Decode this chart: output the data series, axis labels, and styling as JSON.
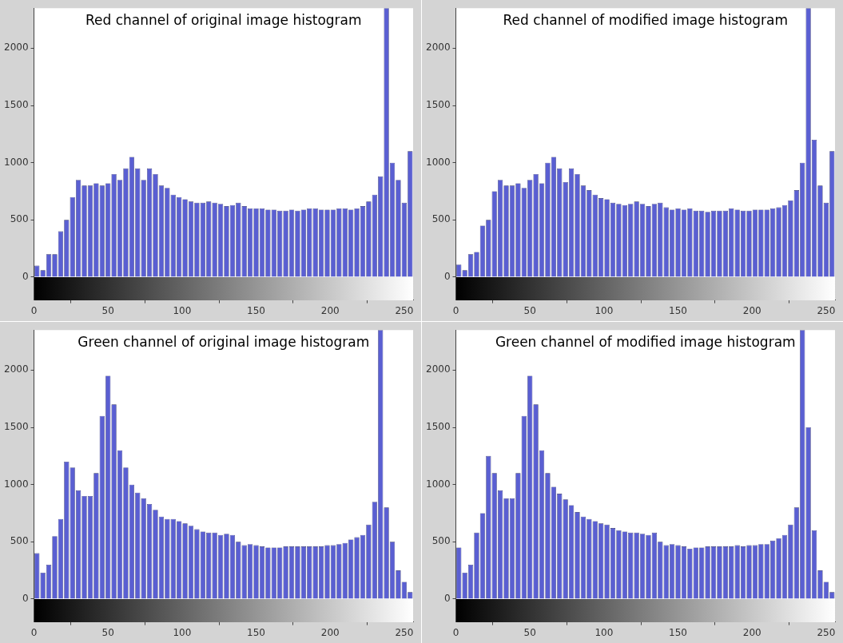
{
  "chart_data": [
    {
      "type": "histogram",
      "title": "Red channel of original image histogram",
      "color": "#5a5fd2",
      "xlim": [
        0,
        256
      ],
      "xticks": [
        0,
        50,
        100,
        150,
        200,
        250
      ],
      "ylim": [
        -200,
        2350
      ],
      "yticks": [
        0,
        500,
        1000,
        1500,
        2000
      ],
      "bins": [
        0,
        4,
        8,
        12,
        16,
        20,
        24,
        28,
        32,
        36,
        40,
        44,
        48,
        52,
        56,
        60,
        64,
        68,
        72,
        76,
        80,
        84,
        88,
        92,
        96,
        100,
        104,
        108,
        112,
        116,
        120,
        124,
        128,
        132,
        136,
        140,
        144,
        148,
        152,
        156,
        160,
        164,
        168,
        172,
        176,
        180,
        184,
        188,
        192,
        196,
        200,
        204,
        208,
        212,
        216,
        220,
        224,
        228,
        232,
        236,
        240,
        244,
        248,
        252,
        256
      ],
      "values": [
        100,
        60,
        200,
        200,
        400,
        500,
        700,
        850,
        800,
        800,
        820,
        800,
        820,
        900,
        850,
        950,
        1050,
        950,
        850,
        950,
        900,
        800,
        780,
        720,
        700,
        680,
        660,
        650,
        650,
        660,
        650,
        640,
        620,
        630,
        650,
        620,
        600,
        600,
        600,
        590,
        590,
        580,
        580,
        590,
        580,
        590,
        600,
        600,
        590,
        590,
        590,
        600,
        600,
        590,
        600,
        620,
        660,
        720,
        880,
        2350,
        1000,
        850,
        650,
        1100
      ]
    },
    {
      "type": "histogram",
      "title": "Red channel of modified image histogram",
      "color": "#5a5fd2",
      "xlim": [
        0,
        256
      ],
      "xticks": [
        0,
        50,
        100,
        150,
        200,
        250
      ],
      "ylim": [
        -200,
        2350
      ],
      "yticks": [
        0,
        500,
        1000,
        1500,
        2000
      ],
      "bins": [
        0,
        4,
        8,
        12,
        16,
        20,
        24,
        28,
        32,
        36,
        40,
        44,
        48,
        52,
        56,
        60,
        64,
        68,
        72,
        76,
        80,
        84,
        88,
        92,
        96,
        100,
        104,
        108,
        112,
        116,
        120,
        124,
        128,
        132,
        136,
        140,
        144,
        148,
        152,
        156,
        160,
        164,
        168,
        172,
        176,
        180,
        184,
        188,
        192,
        196,
        200,
        204,
        208,
        212,
        216,
        220,
        224,
        228,
        232,
        236,
        240,
        244,
        248,
        252,
        256
      ],
      "values": [
        110,
        60,
        200,
        220,
        450,
        500,
        750,
        850,
        800,
        800,
        820,
        780,
        850,
        900,
        820,
        1000,
        1050,
        950,
        830,
        950,
        900,
        800,
        760,
        720,
        690,
        680,
        650,
        640,
        630,
        640,
        660,
        640,
        620,
        640,
        650,
        610,
        590,
        600,
        590,
        600,
        580,
        580,
        570,
        580,
        580,
        580,
        600,
        590,
        580,
        580,
        590,
        590,
        590,
        600,
        610,
        630,
        670,
        760,
        1000,
        2350,
        1200,
        800,
        650,
        1100
      ]
    },
    {
      "type": "histogram",
      "title": "Green channel of original image histogram",
      "color": "#5a5fd2",
      "xlim": [
        0,
        256
      ],
      "xticks": [
        0,
        50,
        100,
        150,
        200,
        250
      ],
      "ylim": [
        -200,
        2350
      ],
      "yticks": [
        0,
        500,
        1000,
        1500,
        2000
      ],
      "bins": [
        0,
        4,
        8,
        12,
        16,
        20,
        24,
        28,
        32,
        36,
        40,
        44,
        48,
        52,
        56,
        60,
        64,
        68,
        72,
        76,
        80,
        84,
        88,
        92,
        96,
        100,
        104,
        108,
        112,
        116,
        120,
        124,
        128,
        132,
        136,
        140,
        144,
        148,
        152,
        156,
        160,
        164,
        168,
        172,
        176,
        180,
        184,
        188,
        192,
        196,
        200,
        204,
        208,
        212,
        216,
        220,
        224,
        228,
        232,
        236,
        240,
        244,
        248,
        252,
        256
      ],
      "values": [
        400,
        230,
        300,
        550,
        700,
        1200,
        1150,
        950,
        900,
        900,
        1100,
        1600,
        1950,
        1700,
        1300,
        1150,
        1000,
        930,
        880,
        830,
        780,
        720,
        700,
        700,
        680,
        660,
        640,
        610,
        590,
        580,
        580,
        560,
        570,
        560,
        500,
        470,
        480,
        470,
        460,
        450,
        450,
        450,
        460,
        460,
        460,
        460,
        460,
        460,
        460,
        470,
        470,
        480,
        490,
        520,
        540,
        560,
        650,
        850,
        2350,
        800,
        500,
        250,
        150,
        60
      ]
    },
    {
      "type": "histogram",
      "title": "Green channel of modified image histogram",
      "color": "#5a5fd2",
      "xlim": [
        0,
        256
      ],
      "xticks": [
        0,
        50,
        100,
        150,
        200,
        250
      ],
      "ylim": [
        -200,
        2350
      ],
      "yticks": [
        0,
        500,
        1000,
        1500,
        2000
      ],
      "bins": [
        0,
        4,
        8,
        12,
        16,
        20,
        24,
        28,
        32,
        36,
        40,
        44,
        48,
        52,
        56,
        60,
        64,
        68,
        72,
        76,
        80,
        84,
        88,
        92,
        96,
        100,
        104,
        108,
        112,
        116,
        120,
        124,
        128,
        132,
        136,
        140,
        144,
        148,
        152,
        156,
        160,
        164,
        168,
        172,
        176,
        180,
        184,
        188,
        192,
        196,
        200,
        204,
        208,
        212,
        216,
        220,
        224,
        228,
        232,
        236,
        240,
        244,
        248,
        252,
        256
      ],
      "values": [
        450,
        230,
        300,
        580,
        750,
        1250,
        1100,
        950,
        880,
        880,
        1100,
        1600,
        1950,
        1700,
        1300,
        1100,
        980,
        920,
        870,
        820,
        760,
        720,
        700,
        680,
        660,
        650,
        620,
        600,
        590,
        580,
        580,
        570,
        560,
        580,
        500,
        470,
        480,
        470,
        460,
        440,
        450,
        450,
        460,
        460,
        460,
        460,
        460,
        470,
        460,
        470,
        470,
        480,
        480,
        510,
        530,
        560,
        650,
        800,
        2350,
        1500,
        600,
        250,
        150,
        60
      ]
    }
  ]
}
